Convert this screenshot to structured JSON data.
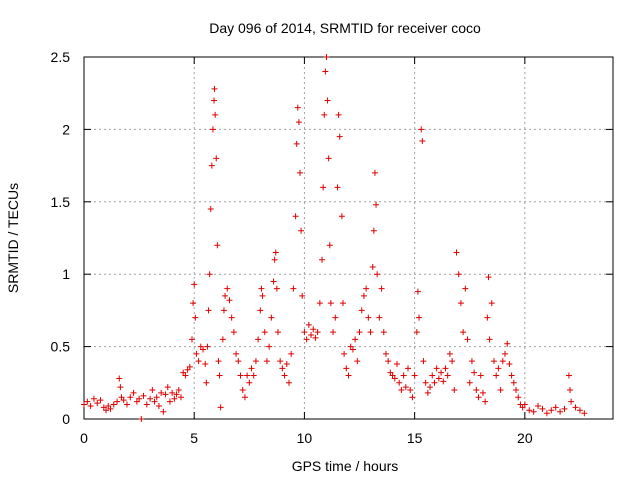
{
  "chart_data": {
    "type": "scatter",
    "title": "Day 096 of 2014, SRMTID for receiver coco",
    "xlabel": "GPS time / hours",
    "ylabel": "SRMTID / TECUs",
    "xlim": [
      0,
      24
    ],
    "ylim": [
      0,
      2.5
    ],
    "x_ticks": [
      0,
      5,
      10,
      15,
      20
    ],
    "x_tick_labels": [
      "0",
      "5",
      "10",
      "15",
      "20"
    ],
    "y_ticks": [
      0,
      0.5,
      1,
      1.5,
      2,
      2.5
    ],
    "y_tick_labels": [
      "0",
      "0.5",
      "1",
      "1.5",
      "2",
      "2.5"
    ],
    "grid": true,
    "marker": "+",
    "series": [
      {
        "name": "SRMTID",
        "color": "#e00000",
        "points": [
          [
            0.0,
            0.1
          ],
          [
            0.15,
            0.12
          ],
          [
            0.3,
            0.09
          ],
          [
            0.45,
            0.14
          ],
          [
            0.6,
            0.11
          ],
          [
            0.75,
            0.13
          ],
          [
            0.9,
            0.08
          ],
          [
            1.0,
            0.06
          ],
          [
            1.1,
            0.09
          ],
          [
            1.2,
            0.07
          ],
          [
            1.35,
            0.1
          ],
          [
            1.5,
            0.12
          ],
          [
            1.6,
            0.28
          ],
          [
            1.65,
            0.22
          ],
          [
            1.7,
            0.15
          ],
          [
            1.8,
            0.13
          ],
          [
            1.95,
            0.1
          ],
          [
            2.1,
            0.15
          ],
          [
            2.25,
            0.18
          ],
          [
            2.4,
            0.12
          ],
          [
            2.5,
            0.14
          ],
          [
            2.6,
            0.0
          ],
          [
            2.7,
            0.16
          ],
          [
            2.85,
            0.1
          ],
          [
            3.0,
            0.14
          ],
          [
            3.1,
            0.2
          ],
          [
            3.2,
            0.12
          ],
          [
            3.3,
            0.15
          ],
          [
            3.4,
            0.09
          ],
          [
            3.5,
            0.18
          ],
          [
            3.6,
            0.05
          ],
          [
            3.7,
            0.17
          ],
          [
            3.8,
            0.22
          ],
          [
            3.9,
            0.12
          ],
          [
            4.0,
            0.18
          ],
          [
            4.1,
            0.14
          ],
          [
            4.2,
            0.17
          ],
          [
            4.3,
            0.2
          ],
          [
            4.4,
            0.15
          ],
          [
            4.5,
            0.32
          ],
          [
            4.6,
            0.3
          ],
          [
            4.7,
            0.34
          ],
          [
            4.8,
            0.36
          ],
          [
            4.9,
            0.55
          ],
          [
            4.95,
            0.8
          ],
          [
            5.0,
            0.93
          ],
          [
            5.05,
            0.7
          ],
          [
            5.1,
            0.45
          ],
          [
            5.2,
            0.4
          ],
          [
            5.3,
            0.5
          ],
          [
            5.4,
            0.48
          ],
          [
            5.5,
            0.38
          ],
          [
            5.55,
            0.25
          ],
          [
            5.6,
            0.5
          ],
          [
            5.65,
            0.75
          ],
          [
            5.7,
            1.0
          ],
          [
            5.75,
            1.45
          ],
          [
            5.8,
            1.75
          ],
          [
            5.85,
            2.0
          ],
          [
            5.9,
            2.2
          ],
          [
            5.92,
            2.28
          ],
          [
            5.95,
            2.1
          ],
          [
            6.0,
            1.8
          ],
          [
            6.05,
            1.2
          ],
          [
            6.1,
            0.4
          ],
          [
            6.15,
            0.3
          ],
          [
            6.2,
            0.08
          ],
          [
            6.3,
            0.55
          ],
          [
            6.35,
            0.75
          ],
          [
            6.4,
            0.85
          ],
          [
            6.5,
            0.9
          ],
          [
            6.6,
            0.82
          ],
          [
            6.7,
            0.7
          ],
          [
            6.8,
            0.6
          ],
          [
            6.9,
            0.45
          ],
          [
            7.0,
            0.4
          ],
          [
            7.1,
            0.3
          ],
          [
            7.2,
            0.2
          ],
          [
            7.3,
            0.15
          ],
          [
            7.4,
            0.3
          ],
          [
            7.5,
            0.25
          ],
          [
            7.6,
            0.35
          ],
          [
            7.7,
            0.3
          ],
          [
            7.8,
            0.4
          ],
          [
            7.9,
            0.55
          ],
          [
            8.0,
            0.75
          ],
          [
            8.05,
            0.9
          ],
          [
            8.1,
            0.85
          ],
          [
            8.2,
            0.6
          ],
          [
            8.3,
            0.4
          ],
          [
            8.4,
            0.5
          ],
          [
            8.5,
            0.7
          ],
          [
            8.6,
            0.95
          ],
          [
            8.65,
            1.1
          ],
          [
            8.7,
            1.15
          ],
          [
            8.75,
            0.9
          ],
          [
            8.8,
            0.6
          ],
          [
            8.9,
            0.4
          ],
          [
            9.0,
            0.35
          ],
          [
            9.1,
            0.3
          ],
          [
            9.2,
            0.38
          ],
          [
            9.3,
            0.25
          ],
          [
            9.4,
            0.45
          ],
          [
            9.5,
            0.9
          ],
          [
            9.6,
            1.4
          ],
          [
            9.65,
            1.9
          ],
          [
            9.7,
            2.15
          ],
          [
            9.75,
            2.05
          ],
          [
            9.8,
            1.7
          ],
          [
            9.85,
            1.3
          ],
          [
            9.9,
            0.85
          ],
          [
            10.0,
            0.6
          ],
          [
            10.1,
            0.55
          ],
          [
            10.2,
            0.65
          ],
          [
            10.3,
            0.58
          ],
          [
            10.4,
            0.62
          ],
          [
            10.5,
            0.56
          ],
          [
            10.6,
            0.6
          ],
          [
            10.7,
            0.8
          ],
          [
            10.8,
            1.1
          ],
          [
            10.85,
            1.6
          ],
          [
            10.9,
            2.1
          ],
          [
            10.95,
            2.4
          ],
          [
            11.0,
            2.5
          ],
          [
            11.05,
            2.2
          ],
          [
            11.1,
            1.8
          ],
          [
            11.15,
            1.2
          ],
          [
            11.2,
            0.8
          ],
          [
            11.3,
            0.6
          ],
          [
            11.4,
            0.7
          ],
          [
            11.5,
            1.6
          ],
          [
            11.55,
            2.1
          ],
          [
            11.6,
            1.95
          ],
          [
            11.7,
            1.4
          ],
          [
            11.75,
            0.8
          ],
          [
            11.8,
            0.45
          ],
          [
            11.9,
            0.35
          ],
          [
            12.0,
            0.3
          ],
          [
            12.1,
            0.5
          ],
          [
            12.2,
            0.48
          ],
          [
            12.3,
            0.55
          ],
          [
            12.4,
            0.4
          ],
          [
            12.5,
            0.6
          ],
          [
            12.6,
            0.75
          ],
          [
            12.7,
            0.85
          ],
          [
            12.8,
            0.9
          ],
          [
            12.9,
            0.7
          ],
          [
            13.0,
            0.6
          ],
          [
            13.1,
            1.05
          ],
          [
            13.15,
            1.3
          ],
          [
            13.2,
            1.7
          ],
          [
            13.25,
            1.48
          ],
          [
            13.3,
            1.0
          ],
          [
            13.4,
            0.7
          ],
          [
            13.5,
            0.9
          ],
          [
            13.6,
            0.6
          ],
          [
            13.7,
            0.45
          ],
          [
            13.8,
            0.4
          ],
          [
            13.9,
            0.32
          ],
          [
            14.0,
            0.3
          ],
          [
            14.1,
            0.28
          ],
          [
            14.2,
            0.38
          ],
          [
            14.3,
            0.25
          ],
          [
            14.4,
            0.2
          ],
          [
            14.5,
            0.3
          ],
          [
            14.6,
            0.22
          ],
          [
            14.7,
            0.35
          ],
          [
            14.8,
            0.2
          ],
          [
            14.9,
            0.15
          ],
          [
            15.0,
            0.3
          ],
          [
            15.1,
            0.6
          ],
          [
            15.15,
            0.88
          ],
          [
            15.2,
            0.7
          ],
          [
            15.3,
            2.0
          ],
          [
            15.35,
            1.92
          ],
          [
            15.4,
            0.4
          ],
          [
            15.5,
            0.25
          ],
          [
            15.6,
            0.18
          ],
          [
            15.7,
            0.22
          ],
          [
            15.8,
            0.3
          ],
          [
            15.9,
            0.25
          ],
          [
            16.0,
            0.35
          ],
          [
            16.1,
            0.28
          ],
          [
            16.2,
            0.32
          ],
          [
            16.3,
            0.26
          ],
          [
            16.4,
            0.35
          ],
          [
            16.5,
            0.3
          ],
          [
            16.6,
            0.45
          ],
          [
            16.7,
            0.4
          ],
          [
            16.8,
            0.2
          ],
          [
            16.9,
            1.15
          ],
          [
            17.0,
            1.0
          ],
          [
            17.1,
            0.8
          ],
          [
            17.2,
            0.6
          ],
          [
            17.3,
            0.9
          ],
          [
            17.4,
            0.55
          ],
          [
            17.5,
            0.25
          ],
          [
            17.6,
            0.4
          ],
          [
            17.7,
            0.32
          ],
          [
            17.8,
            0.2
          ],
          [
            17.9,
            0.15
          ],
          [
            18.0,
            0.3
          ],
          [
            18.1,
            0.18
          ],
          [
            18.2,
            0.12
          ],
          [
            18.3,
            0.7
          ],
          [
            18.35,
            0.98
          ],
          [
            18.4,
            0.55
          ],
          [
            18.5,
            0.8
          ],
          [
            18.6,
            0.4
          ],
          [
            18.7,
            0.3
          ],
          [
            18.8,
            0.35
          ],
          [
            18.9,
            0.2
          ],
          [
            19.0,
            0.4
          ],
          [
            19.1,
            0.45
          ],
          [
            19.2,
            0.52
          ],
          [
            19.3,
            0.38
          ],
          [
            19.4,
            0.3
          ],
          [
            19.5,
            0.25
          ],
          [
            19.6,
            0.2
          ],
          [
            19.7,
            0.15
          ],
          [
            19.8,
            0.1
          ],
          [
            19.9,
            0.08
          ],
          [
            20.0,
            0.1
          ],
          [
            20.2,
            0.06
          ],
          [
            20.4,
            0.05
          ],
          [
            20.6,
            0.09
          ],
          [
            20.8,
            0.07
          ],
          [
            21.0,
            0.04
          ],
          [
            21.2,
            0.06
          ],
          [
            21.4,
            0.08
          ],
          [
            21.6,
            0.05
          ],
          [
            21.8,
            0.07
          ],
          [
            22.0,
            0.3
          ],
          [
            22.05,
            0.2
          ],
          [
            22.1,
            0.12
          ],
          [
            22.3,
            0.08
          ],
          [
            22.5,
            0.06
          ],
          [
            22.7,
            0.04
          ]
        ]
      }
    ]
  }
}
